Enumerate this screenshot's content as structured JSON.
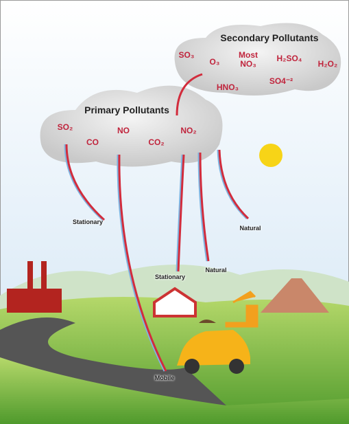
{
  "primary": {
    "title": "Primary Pollutants",
    "pollutants": [
      "SO₂",
      "CO",
      "NO",
      "CO₂",
      "NO₂"
    ]
  },
  "secondary": {
    "title": "Secondary Pollutants",
    "pollutants": [
      "SO₃",
      "O₃",
      "Most NO₃",
      "H₂SO₄",
      "H₂O₂",
      "HNO₃",
      "SO4⁻²"
    ]
  },
  "sources": [
    "Stationary",
    "Natural",
    "Natural",
    "Stationary",
    "Mobile"
  ]
}
